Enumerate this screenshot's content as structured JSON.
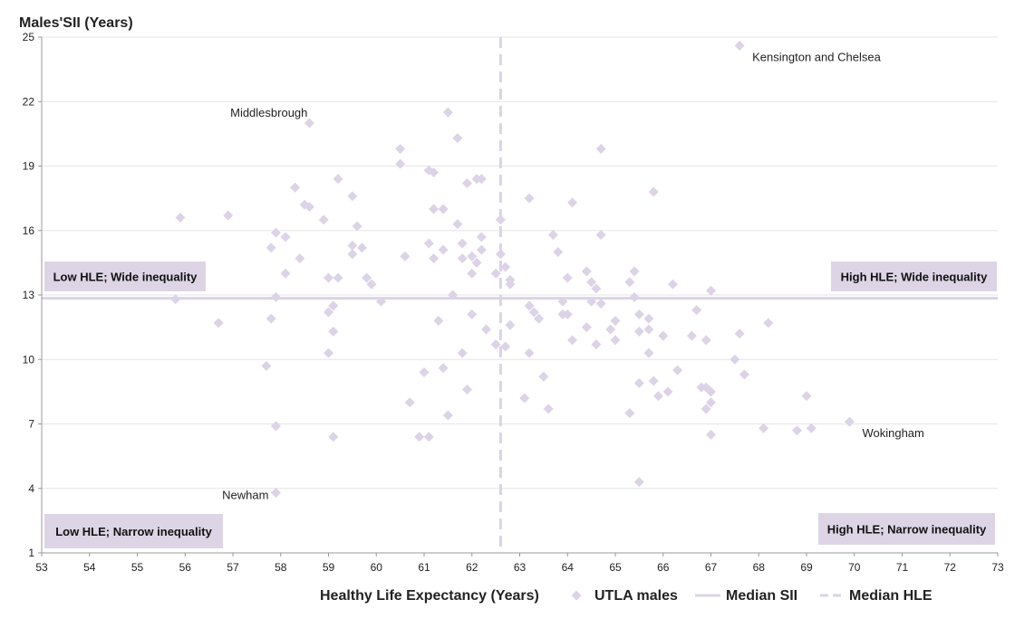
{
  "chart_data": {
    "type": "scatter",
    "title": "",
    "ylabel": "Males'SII (Years)",
    "xlabel": "Healthy Life Expectancy (Years)",
    "xlim": [
      53,
      73
    ],
    "ylim": [
      1,
      25
    ],
    "xticks": [
      53,
      54,
      55,
      56,
      57,
      58,
      59,
      60,
      61,
      62,
      63,
      64,
      65,
      66,
      67,
      68,
      69,
      70,
      71,
      72,
      73
    ],
    "yticks": [
      1,
      4,
      7,
      10,
      13,
      16,
      19,
      22,
      25
    ],
    "grid": "horizontal",
    "legend_position": "bottom",
    "colors": {
      "points": "#dcd3e6",
      "median": "#dcd3e6",
      "quadrant_box": "#ddd5e6",
      "grid": "#e6e6e6",
      "axis": "#999999"
    },
    "median_sii": 12.85,
    "median_hle": 62.6,
    "legend": [
      {
        "label": "UTLA males",
        "marker": "diamond"
      },
      {
        "label": "Median SII",
        "marker": "solid-line"
      },
      {
        "label": "Median HLE",
        "marker": "dashed-line"
      }
    ],
    "quadrant_labels": [
      {
        "text": "Low HLE; Wide inequality",
        "position": "middle-left-top"
      },
      {
        "text": "High HLE; Wide inequality",
        "position": "middle-right-top"
      },
      {
        "text": "Low HLE; Narrow inequality",
        "position": "bottom-left"
      },
      {
        "text": "High HLE; Narrow inequality",
        "position": "bottom-right"
      }
    ],
    "annotations": [
      {
        "text": "Kensington and Chelsea",
        "x": 67.6,
        "y": 24.6,
        "side": "right-below"
      },
      {
        "text": "Middlesbrough",
        "x": 58.6,
        "y": 21.0,
        "side": "left-above"
      },
      {
        "text": "Wokingham",
        "x": 69.9,
        "y": 7.1,
        "side": "right-below"
      },
      {
        "text": "Newham",
        "x": 57.9,
        "y": 3.8,
        "side": "left"
      }
    ],
    "series": [
      {
        "name": "UTLA males",
        "points": [
          [
            67.6,
            24.6
          ],
          [
            58.6,
            21.0
          ],
          [
            61.5,
            21.5
          ],
          [
            61.7,
            20.3
          ],
          [
            60.5,
            19.8
          ],
          [
            60.5,
            19.1
          ],
          [
            64.7,
            19.8
          ],
          [
            61.1,
            18.8
          ],
          [
            61.2,
            18.7
          ],
          [
            61.9,
            18.2
          ],
          [
            62.1,
            18.4
          ],
          [
            62.2,
            18.4
          ],
          [
            59.2,
            18.4
          ],
          [
            58.3,
            18.0
          ],
          [
            59.5,
            17.6
          ],
          [
            58.5,
            17.2
          ],
          [
            58.6,
            17.1
          ],
          [
            61.2,
            17.0
          ],
          [
            61.4,
            17.0
          ],
          [
            55.9,
            16.6
          ],
          [
            56.9,
            16.7
          ],
          [
            58.9,
            16.5
          ],
          [
            61.7,
            16.3
          ],
          [
            62.6,
            16.5
          ],
          [
            57.9,
            15.9
          ],
          [
            58.1,
            15.7
          ],
          [
            59.6,
            16.2
          ],
          [
            62.2,
            15.7
          ],
          [
            57.8,
            15.2
          ],
          [
            59.5,
            15.3
          ],
          [
            59.7,
            15.2
          ],
          [
            61.1,
            15.4
          ],
          [
            61.8,
            15.4
          ],
          [
            61.4,
            15.1
          ],
          [
            62.2,
            15.1
          ],
          [
            58.4,
            14.7
          ],
          [
            59.5,
            14.9
          ],
          [
            60.6,
            14.8
          ],
          [
            61.2,
            14.7
          ],
          [
            61.8,
            14.7
          ],
          [
            62.0,
            14.8
          ],
          [
            62.1,
            14.5
          ],
          [
            58.1,
            14.0
          ],
          [
            59.0,
            13.8
          ],
          [
            59.2,
            13.8
          ],
          [
            59.8,
            13.8
          ],
          [
            59.9,
            13.5
          ],
          [
            62.0,
            14.0
          ],
          [
            61.6,
            13.0
          ],
          [
            55.8,
            12.8
          ],
          [
            57.9,
            12.9
          ],
          [
            59.1,
            12.5
          ],
          [
            59.0,
            12.2
          ],
          [
            60.1,
            12.7
          ],
          [
            62.0,
            12.1
          ],
          [
            56.7,
            11.7
          ],
          [
            57.8,
            11.9
          ],
          [
            61.3,
            11.8
          ],
          [
            62.3,
            11.4
          ],
          [
            59.1,
            11.3
          ],
          [
            59.0,
            10.3
          ],
          [
            61.8,
            10.3
          ],
          [
            57.7,
            9.7
          ],
          [
            61.0,
            9.4
          ],
          [
            61.4,
            9.6
          ],
          [
            61.9,
            8.6
          ],
          [
            60.7,
            8.0
          ],
          [
            61.5,
            7.4
          ],
          [
            57.9,
            6.9
          ],
          [
            59.1,
            6.4
          ],
          [
            60.9,
            6.4
          ],
          [
            61.1,
            6.4
          ],
          [
            57.9,
            3.8
          ],
          [
            65.8,
            17.8
          ],
          [
            63.2,
            17.5
          ],
          [
            64.1,
            17.3
          ],
          [
            63.7,
            15.8
          ],
          [
            64.7,
            15.8
          ],
          [
            63.8,
            15.0
          ],
          [
            62.6,
            14.9
          ],
          [
            62.7,
            14.3
          ],
          [
            62.5,
            14.0
          ],
          [
            62.8,
            13.7
          ],
          [
            62.8,
            13.5
          ],
          [
            64.0,
            13.8
          ],
          [
            64.4,
            14.1
          ],
          [
            64.5,
            13.6
          ],
          [
            64.6,
            13.3
          ],
          [
            65.4,
            14.1
          ],
          [
            65.3,
            13.6
          ],
          [
            66.2,
            13.5
          ],
          [
            67.0,
            13.2
          ],
          [
            63.9,
            12.7
          ],
          [
            64.5,
            12.7
          ],
          [
            64.7,
            12.6
          ],
          [
            65.4,
            12.9
          ],
          [
            63.2,
            12.5
          ],
          [
            63.3,
            12.2
          ],
          [
            63.4,
            11.9
          ],
          [
            63.9,
            12.1
          ],
          [
            64.0,
            12.1
          ],
          [
            62.8,
            11.6
          ],
          [
            64.4,
            11.5
          ],
          [
            64.9,
            11.4
          ],
          [
            65.0,
            11.8
          ],
          [
            65.5,
            12.1
          ],
          [
            65.7,
            11.9
          ],
          [
            65.5,
            11.3
          ],
          [
            65.7,
            11.4
          ],
          [
            66.0,
            11.1
          ],
          [
            66.6,
            11.1
          ],
          [
            66.7,
            12.3
          ],
          [
            66.9,
            10.9
          ],
          [
            67.6,
            11.2
          ],
          [
            68.2,
            11.7
          ],
          [
            65.0,
            10.9
          ],
          [
            64.6,
            10.7
          ],
          [
            64.1,
            10.9
          ],
          [
            65.7,
            10.3
          ],
          [
            63.2,
            10.3
          ],
          [
            62.5,
            10.7
          ],
          [
            62.7,
            10.6
          ],
          [
            67.5,
            10.0
          ],
          [
            67.7,
            9.3
          ],
          [
            66.3,
            9.5
          ],
          [
            65.5,
            8.9
          ],
          [
            65.8,
            9.0
          ],
          [
            65.9,
            8.3
          ],
          [
            66.1,
            8.5
          ],
          [
            66.8,
            8.7
          ],
          [
            66.9,
            8.7
          ],
          [
            67.0,
            8.5
          ],
          [
            67.0,
            8.0
          ],
          [
            66.9,
            7.7
          ],
          [
            63.5,
            9.2
          ],
          [
            63.1,
            8.2
          ],
          [
            63.6,
            7.7
          ],
          [
            65.3,
            7.5
          ],
          [
            69.0,
            8.3
          ],
          [
            68.1,
            6.8
          ],
          [
            68.8,
            6.7
          ],
          [
            69.1,
            6.8
          ],
          [
            69.9,
            7.1
          ],
          [
            67.0,
            6.5
          ],
          [
            65.5,
            4.3
          ]
        ]
      }
    ]
  }
}
